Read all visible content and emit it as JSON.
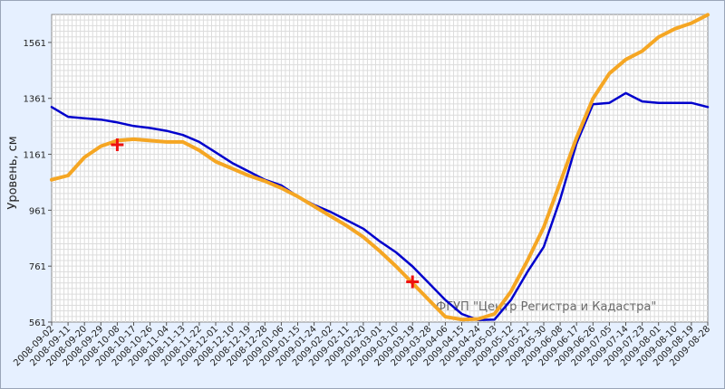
{
  "chart_data": {
    "type": "line",
    "ylabel": "Уровень, см",
    "watermark": "ФГУП \"Центр Регистра и Кадастра\"",
    "ylim": [
      561,
      1661
    ],
    "yticks": [
      561,
      761,
      961,
      1161,
      1361,
      1561
    ],
    "x_dates": [
      "2008-09-02",
      "2008-09-11",
      "2008-09-20",
      "2008-09-29",
      "2008-10-08",
      "2008-10-17",
      "2008-10-26",
      "2008-11-04",
      "2008-11-13",
      "2008-11-22",
      "2008-12-01",
      "2008-12-10",
      "2008-12-19",
      "2008-12-28",
      "2009-01-06",
      "2009-01-15",
      "2009-01-24",
      "2009-02-02",
      "2009-02-11",
      "2009-02-20",
      "2009-03-01",
      "2009-03-10",
      "2009-03-19",
      "2009-03-28",
      "2009-04-06",
      "2009-04-15",
      "2009-04-24",
      "2009-05-03",
      "2009-05-12",
      "2009-05-21",
      "2009-05-30",
      "2009-06-08",
      "2009-06-17",
      "2009-06-26",
      "2009-07-05",
      "2009-07-14",
      "2009-07-23",
      "2009-08-01",
      "2009-08-10",
      "2009-08-19",
      "2009-08-28"
    ],
    "series": [
      {
        "color": "#0000cc",
        "values": [
          1330,
          1295,
          1290,
          1285,
          1275,
          1262,
          1255,
          1245,
          1230,
          1205,
          1168,
          1130,
          1100,
          1070,
          1050,
          1010,
          980,
          955,
          925,
          895,
          850,
          810,
          760,
          700,
          640,
          590,
          568,
          570,
          640,
          740,
          830,
          1000,
          1200,
          1340,
          1345,
          1380,
          1350,
          1345,
          1345,
          1345,
          1330
        ]
      },
      {
        "color": "#f5a623",
        "values": [
          1070,
          1085,
          1150,
          1190,
          1210,
          1215,
          1210,
          1205,
          1205,
          1175,
          1135,
          1110,
          1085,
          1065,
          1040,
          1010,
          975,
          940,
          905,
          865,
          815,
          760,
          700,
          640,
          580,
          570,
          572,
          590,
          670,
          780,
          900,
          1060,
          1220,
          1360,
          1450,
          1500,
          1530,
          1580,
          1610,
          1630,
          1660
        ]
      }
    ],
    "markers": [
      {
        "date": "2008-10-08",
        "value": 1195,
        "color": "#ee1111"
      },
      {
        "date": "2009-03-19",
        "value": 705,
        "color": "#ee1111"
      }
    ],
    "grid": true
  }
}
